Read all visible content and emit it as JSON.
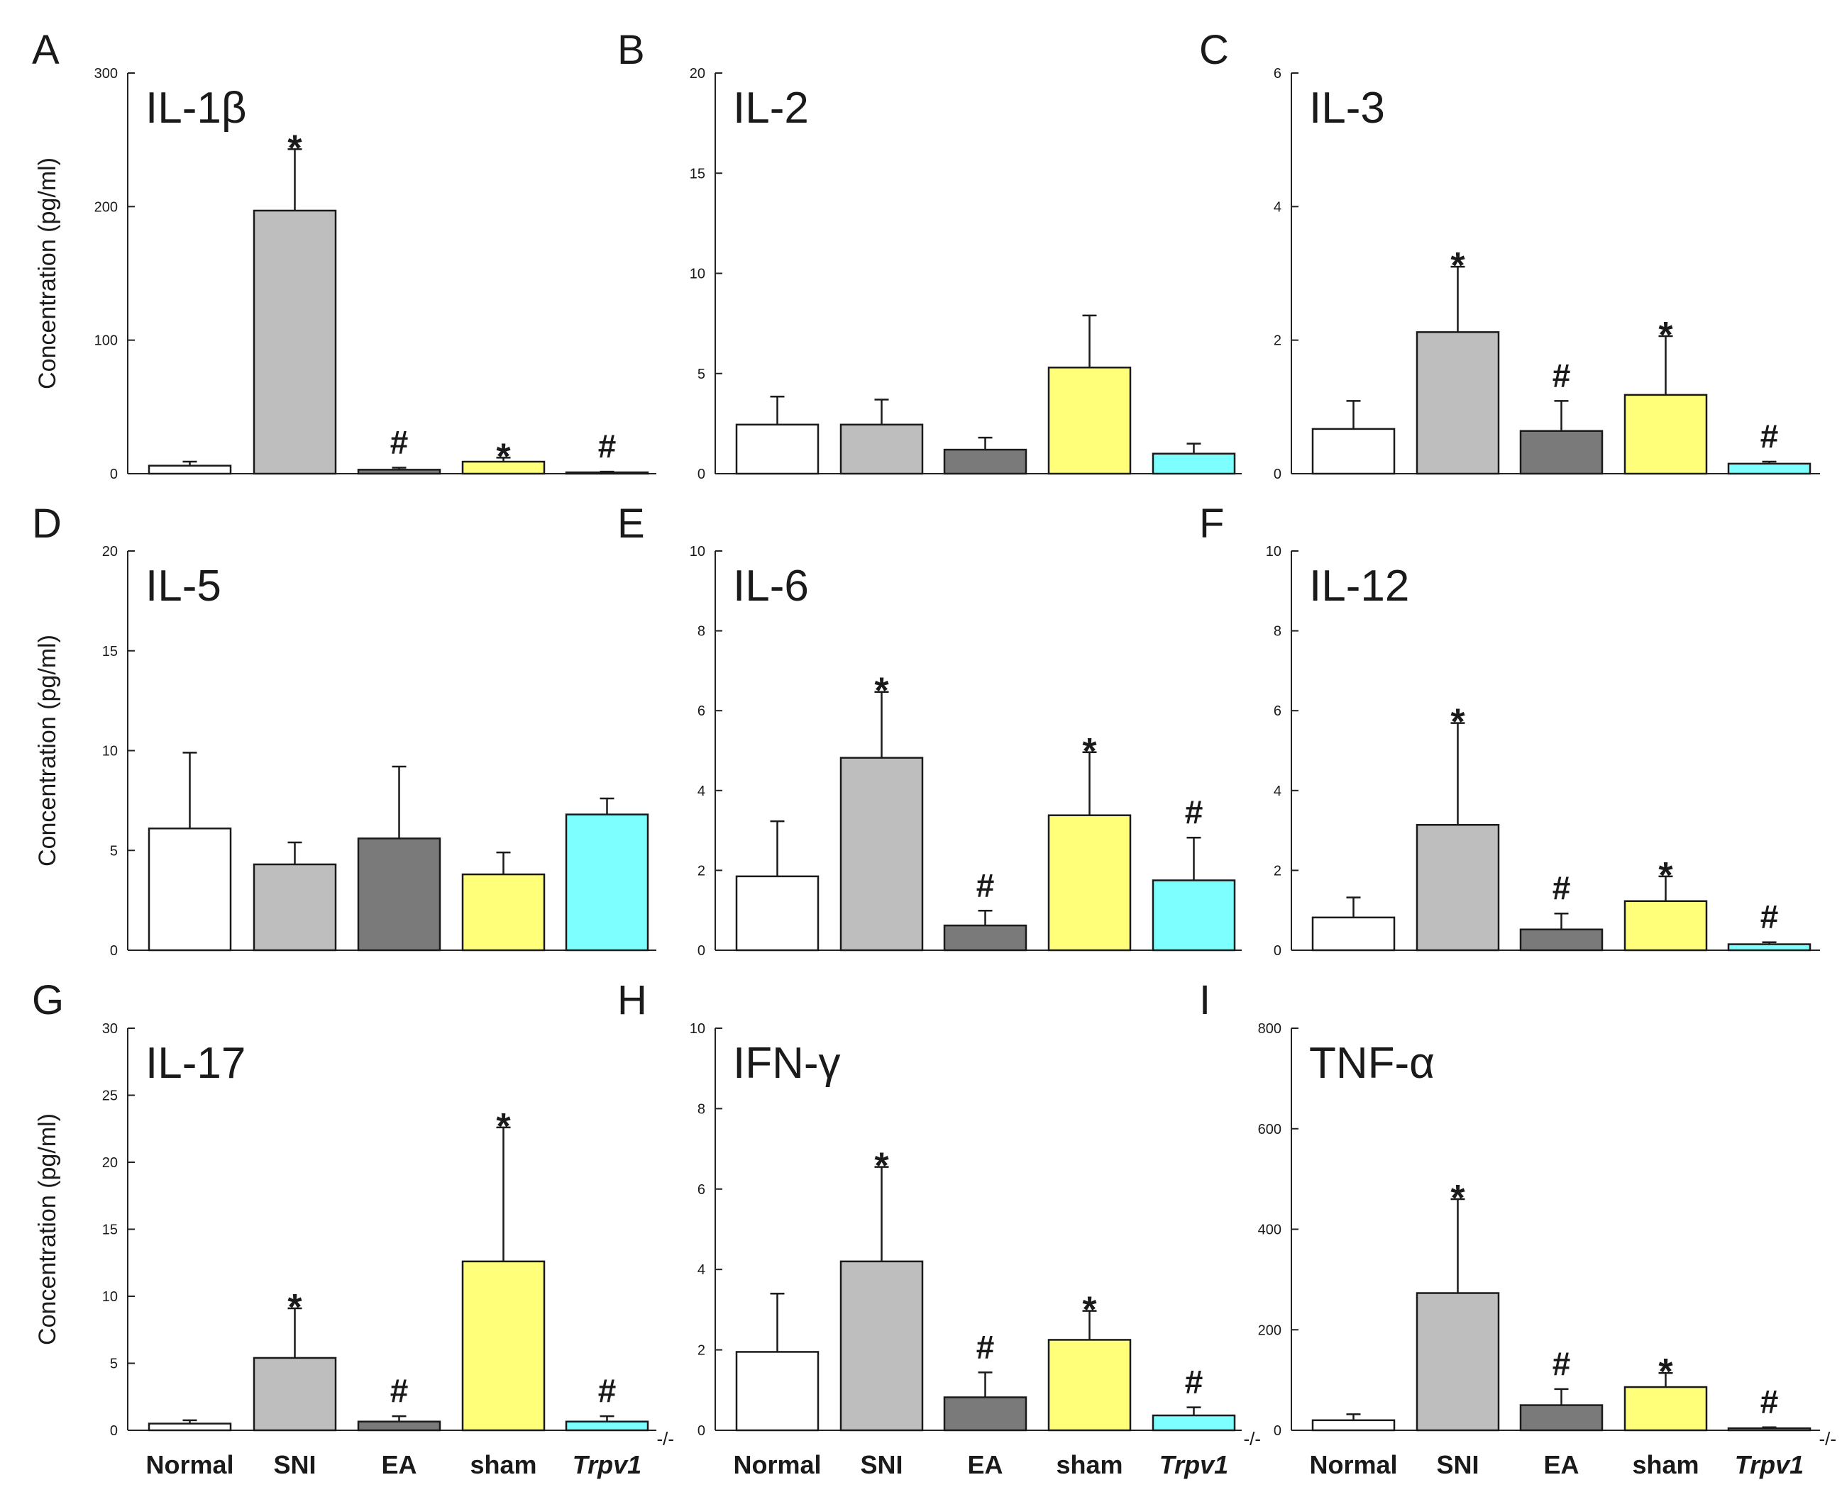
{
  "figure": {
    "ylabel": "Concentration (pg/ml)",
    "categories": [
      "Normal",
      "SNI",
      "EA",
      "sham",
      "Trpv1"
    ],
    "category_superscript": "-/-",
    "colors": {
      "Normal": "#ffffff",
      "SNI": "#bebebe",
      "EA": "#7a7a7a",
      "sham": "#ffff7a",
      "Trpv1": "#7effff"
    }
  },
  "chart_data": [
    {
      "type": "bar",
      "panel": "A",
      "title": "IL-1β",
      "ylim": [
        0,
        300
      ],
      "yticks": [
        0,
        100,
        200,
        300
      ],
      "categories": [
        "Normal",
        "SNI",
        "EA",
        "sham",
        "Trpv1"
      ],
      "values": [
        6,
        197,
        3,
        9,
        1
      ],
      "errors": [
        3,
        46,
        1.5,
        3,
        0.5
      ],
      "markers": [
        "",
        "*",
        "#",
        "*",
        "#"
      ]
    },
    {
      "type": "bar",
      "panel": "B",
      "title": "IL-2",
      "ylim": [
        0,
        20
      ],
      "yticks": [
        0,
        5,
        10,
        15,
        20
      ],
      "categories": [
        "Normal",
        "SNI",
        "EA",
        "sham",
        "Trpv1"
      ],
      "values": [
        2.45,
        2.45,
        1.2,
        5.3,
        1.0
      ],
      "errors": [
        1.4,
        1.25,
        0.6,
        2.6,
        0.5
      ],
      "markers": [
        "",
        "",
        "",
        "",
        ""
      ]
    },
    {
      "type": "bar",
      "panel": "C",
      "title": "IL-3",
      "ylim": [
        0,
        6
      ],
      "yticks": [
        0,
        2,
        4,
        6
      ],
      "categories": [
        "Normal",
        "SNI",
        "EA",
        "sham",
        "Trpv1"
      ],
      "values": [
        0.67,
        2.12,
        0.64,
        1.18,
        0.15
      ],
      "errors": [
        0.42,
        0.98,
        0.45,
        0.88,
        0.03
      ],
      "markers": [
        "",
        "*",
        "#",
        "*",
        "#"
      ]
    },
    {
      "type": "bar",
      "panel": "D",
      "title": "IL-5",
      "ylim": [
        0,
        20
      ],
      "yticks": [
        0,
        5,
        10,
        15,
        20
      ],
      "categories": [
        "Normal",
        "SNI",
        "EA",
        "sham",
        "Trpv1"
      ],
      "values": [
        6.1,
        4.3,
        5.6,
        3.8,
        6.8
      ],
      "errors": [
        3.8,
        1.1,
        3.6,
        1.1,
        0.8
      ],
      "markers": [
        "",
        "",
        "",
        "",
        ""
      ]
    },
    {
      "type": "bar",
      "panel": "E",
      "title": "IL-6",
      "ylim": [
        0,
        10
      ],
      "yticks": [
        0,
        2,
        4,
        6,
        8,
        10
      ],
      "categories": [
        "Normal",
        "SNI",
        "EA",
        "sham",
        "Trpv1"
      ],
      "values": [
        1.85,
        4.82,
        0.62,
        3.38,
        1.75
      ],
      "errors": [
        1.38,
        1.65,
        0.37,
        1.58,
        1.07
      ],
      "markers": [
        "",
        "*",
        "#",
        "*",
        "#"
      ]
    },
    {
      "type": "bar",
      "panel": "F",
      "title": "IL-12",
      "ylim": [
        0,
        10
      ],
      "yticks": [
        0,
        2,
        4,
        6,
        8,
        10
      ],
      "categories": [
        "Normal",
        "SNI",
        "EA",
        "sham",
        "Trpv1"
      ],
      "values": [
        0.82,
        3.14,
        0.52,
        1.23,
        0.15
      ],
      "errors": [
        0.5,
        2.55,
        0.4,
        0.62,
        0.05
      ],
      "markers": [
        "",
        "*",
        "#",
        "*",
        "#"
      ]
    },
    {
      "type": "bar",
      "panel": "G",
      "title": "IL-17",
      "ylim": [
        0,
        30
      ],
      "yticks": [
        0,
        5,
        10,
        15,
        20,
        25,
        30
      ],
      "categories": [
        "Normal",
        "SNI",
        "EA",
        "sham",
        "Trpv1"
      ],
      "values": [
        0.5,
        5.4,
        0.65,
        12.6,
        0.65
      ],
      "errors": [
        0.25,
        3.7,
        0.4,
        10.0,
        0.4
      ],
      "markers": [
        "",
        "*",
        "#",
        "*",
        "#"
      ]
    },
    {
      "type": "bar",
      "panel": "H",
      "title": "IFN-γ",
      "ylim": [
        0,
        10
      ],
      "yticks": [
        0,
        2,
        4,
        6,
        8,
        10
      ],
      "categories": [
        "Normal",
        "SNI",
        "EA",
        "sham",
        "Trpv1"
      ],
      "values": [
        1.95,
        4.2,
        0.82,
        2.25,
        0.37
      ],
      "errors": [
        1.45,
        2.35,
        0.62,
        0.72,
        0.2
      ],
      "markers": [
        "",
        "*",
        "#",
        "*",
        "#"
      ]
    },
    {
      "type": "bar",
      "panel": "I",
      "title": "TNF-α",
      "ylim": [
        0,
        800
      ],
      "yticks": [
        0,
        200,
        400,
        600,
        800
      ],
      "categories": [
        "Normal",
        "SNI",
        "EA",
        "sham",
        "Trpv1"
      ],
      "values": [
        20,
        273,
        50,
        86,
        4
      ],
      "errors": [
        12,
        187,
        32,
        28,
        2
      ],
      "markers": [
        "",
        "*",
        "#",
        "*",
        "#"
      ]
    }
  ]
}
